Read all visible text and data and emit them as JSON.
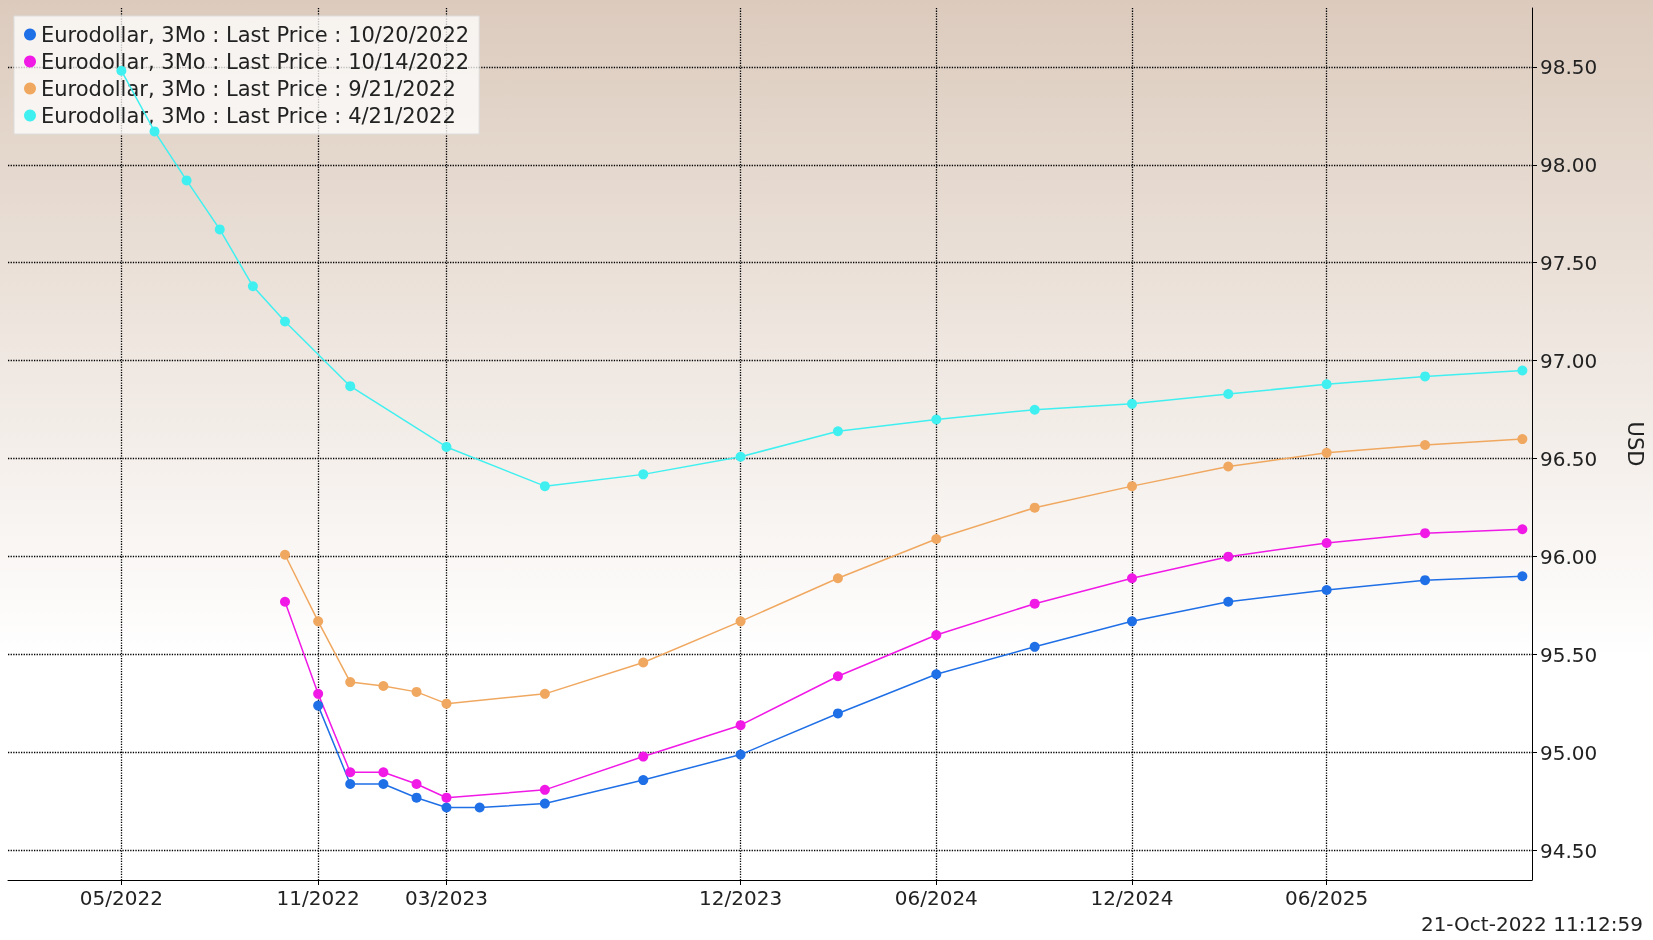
{
  "chart_data": {
    "type": "line",
    "ylabel": "USD",
    "annotations": [
      "21-Oct-2022 11:12:59"
    ],
    "xlim": [
      "2022-01-15",
      "2025-12-10"
    ],
    "xticks": [
      {
        "value": "2022-05",
        "label": "05/2022"
      },
      {
        "value": "2022-11",
        "label": "11/2022"
      },
      {
        "value": "2023-03",
        "label": "03/2023"
      },
      {
        "value": "2023-12",
        "label": "12/2023"
      },
      {
        "value": "2024-06",
        "label": "06/2024"
      },
      {
        "value": "2024-12",
        "label": "12/2024"
      },
      {
        "value": "2025-06",
        "label": "06/2025"
      }
    ],
    "ylim": [
      94.35,
      98.8
    ],
    "yticks": [
      {
        "value": 94.5,
        "label": "94.50"
      },
      {
        "value": 95,
        "label": "95.00"
      },
      {
        "value": 95.5,
        "label": "95.50"
      },
      {
        "value": 96,
        "label": "96.00"
      },
      {
        "value": 96.5,
        "label": "96.50"
      },
      {
        "value": 97,
        "label": "97.00"
      },
      {
        "value": 97.5,
        "label": "97.50"
      },
      {
        "value": 98,
        "label": "98.00"
      },
      {
        "value": 98.5,
        "label": "98.50"
      }
    ],
    "grid": true,
    "legend": "top left",
    "marker": "circle",
    "line_style": "solid",
    "series": [
      {
        "name": "Eurodollar, 3Mo : Last Price : 10/20/2022",
        "color": "#1f6fe6",
        "x": [
          "2022-11",
          "2022-12",
          "2023-01",
          "2023-02",
          "2023-03",
          "2023-04",
          "2023-06",
          "2023-09",
          "2023-12",
          "2024-03",
          "2024-06",
          "2024-09",
          "2024-12",
          "2025-03",
          "2025-06",
          "2025-09",
          "2025-12"
        ],
        "values": [
          95.24,
          94.84,
          94.84,
          94.77,
          94.72,
          94.72,
          94.74,
          94.86,
          94.99,
          95.2,
          95.4,
          95.54,
          95.67,
          95.77,
          95.83,
          95.88,
          95.9
        ]
      },
      {
        "name": "Eurodollar, 3Mo : Last Price : 10/14/2022",
        "color": "#f019e6",
        "x": [
          "2022-10",
          "2022-11",
          "2022-12",
          "2023-01",
          "2023-02",
          "2023-03",
          "2023-06",
          "2023-09",
          "2023-12",
          "2024-03",
          "2024-06",
          "2024-09",
          "2024-12",
          "2025-03",
          "2025-06",
          "2025-09",
          "2025-12"
        ],
        "values": [
          95.77,
          95.3,
          94.9,
          94.9,
          94.84,
          94.77,
          94.81,
          94.98,
          95.14,
          95.39,
          95.6,
          95.76,
          95.89,
          96.0,
          96.07,
          96.12,
          96.14
        ]
      },
      {
        "name": "Eurodollar, 3Mo : Last Price : 9/21/2022",
        "color": "#f0a860",
        "x": [
          "2022-10",
          "2022-11",
          "2022-12",
          "2023-01",
          "2023-02",
          "2023-03",
          "2023-06",
          "2023-09",
          "2023-12",
          "2024-03",
          "2024-06",
          "2024-09",
          "2024-12",
          "2025-03",
          "2025-06",
          "2025-09",
          "2025-12"
        ],
        "values": [
          96.01,
          95.67,
          95.36,
          95.34,
          95.31,
          95.25,
          95.3,
          95.46,
          95.67,
          95.89,
          96.09,
          96.25,
          96.36,
          96.46,
          96.53,
          96.57,
          96.6
        ]
      },
      {
        "name": "Eurodollar, 3Mo : Last Price : 4/21/2022",
        "color": "#40f0f0",
        "x": [
          "2022-05",
          "2022-06",
          "2022-07",
          "2022-08",
          "2022-09",
          "2022-10",
          "2022-12",
          "2023-03",
          "2023-06",
          "2023-09",
          "2023-12",
          "2024-03",
          "2024-06",
          "2024-09",
          "2024-12",
          "2025-03",
          "2025-06",
          "2025-09",
          "2025-12"
        ],
        "values": [
          98.48,
          98.17,
          97.92,
          97.67,
          97.38,
          97.2,
          96.87,
          96.56,
          96.36,
          96.42,
          96.51,
          96.64,
          96.7,
          96.75,
          96.78,
          96.83,
          96.88,
          96.92,
          96.95
        ]
      }
    ]
  }
}
